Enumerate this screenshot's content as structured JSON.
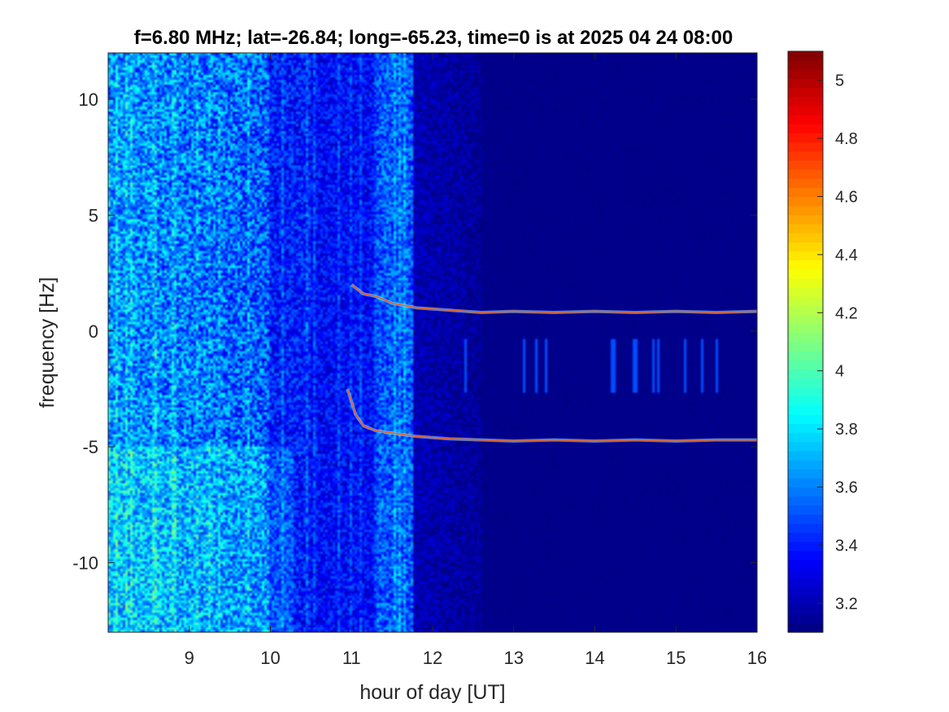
{
  "chart_data": {
    "type": "heatmap",
    "title": "f=6.80 MHz;  lat=-26.84; long=-65.23, time=0 is at 2025 04 24 08:00",
    "xlabel": "hour of day [UT]",
    "ylabel": "frequency [Hz]",
    "xlim": [
      8,
      16
    ],
    "ylim": [
      -13,
      12
    ],
    "xticks": [
      9,
      10,
      11,
      12,
      13,
      14,
      15,
      16
    ],
    "yticks": [
      10,
      5,
      0,
      -5,
      -10
    ],
    "colormap": "jet",
    "clim": [
      3.1,
      5.1
    ],
    "colorbar_ticks": [
      5,
      4.8,
      4.6,
      4.4,
      4.2,
      4,
      3.8,
      3.6,
      3.4,
      3.2
    ],
    "series": [
      {
        "values": [
          [
            11.0,
            2.0
          ],
          [
            11.15,
            1.6
          ],
          [
            11.3,
            1.5
          ],
          [
            11.5,
            1.2
          ],
          [
            11.8,
            1.0
          ],
          [
            12.2,
            0.9
          ],
          [
            12.6,
            0.8
          ],
          [
            13.0,
            0.85
          ],
          [
            13.5,
            0.8
          ],
          [
            14.0,
            0.85
          ],
          [
            14.5,
            0.8
          ],
          [
            15.0,
            0.85
          ],
          [
            15.5,
            0.8
          ],
          [
            16.0,
            0.85
          ]
        ]
      },
      {
        "values": [
          [
            10.95,
            -2.5
          ],
          [
            11.05,
            -3.6
          ],
          [
            11.15,
            -4.1
          ],
          [
            11.3,
            -4.3
          ],
          [
            11.5,
            -4.4
          ],
          [
            11.8,
            -4.55
          ],
          [
            12.2,
            -4.65
          ],
          [
            12.6,
            -4.7
          ],
          [
            13.0,
            -4.75
          ],
          [
            13.5,
            -4.7
          ],
          [
            14.0,
            -4.75
          ],
          [
            14.5,
            -4.7
          ],
          [
            15.0,
            -4.75
          ],
          [
            15.5,
            -4.7
          ],
          [
            16.0,
            -4.7
          ]
        ]
      }
    ]
  }
}
